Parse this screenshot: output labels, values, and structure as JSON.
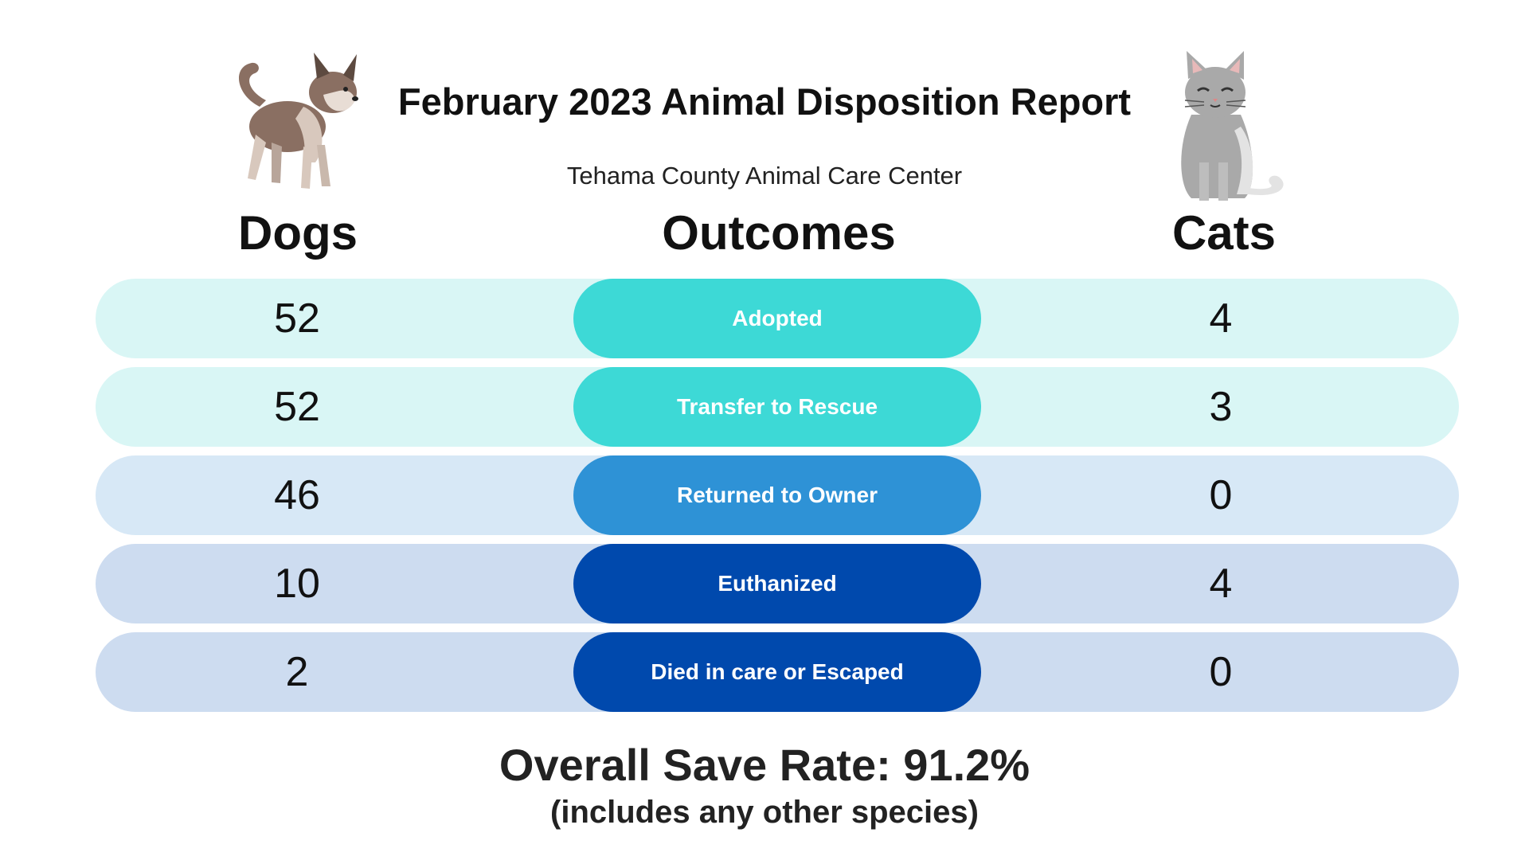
{
  "header": {
    "title": "February 2023 Animal Disposition Report",
    "subtitle": "Tehama County Animal Care Center"
  },
  "columns": {
    "dogs": "Dogs",
    "outcomes": "Outcomes",
    "cats": "Cats"
  },
  "rows": [
    {
      "outcome": "Adopted",
      "dogs": "52",
      "cats": "4",
      "pill_color": "#3dd9d6",
      "row_color": "#d9f6f5"
    },
    {
      "outcome": "Transfer to Rescue",
      "dogs": "52",
      "cats": "3",
      "pill_color": "#3dd9d6",
      "row_color": "#d9f6f5"
    },
    {
      "outcome": "Returned to Owner",
      "dogs": "46",
      "cats": "0",
      "pill_color": "#2e92d6",
      "row_color": "#d7e8f6"
    },
    {
      "outcome": "Euthanized",
      "dogs": "10",
      "cats": "4",
      "pill_color": "#0049ad",
      "row_color": "#cddcf0"
    },
    {
      "outcome": "Died in care or Escaped",
      "dogs": "2",
      "cats": "0",
      "pill_color": "#0049ad",
      "row_color": "#cddcf0"
    }
  ],
  "footer": {
    "save_rate": "Overall Save Rate:  91.2%",
    "note": "(includes any other species)"
  },
  "illustrations": {
    "dog": "dog-illustration",
    "cat": "cat-illustration"
  }
}
